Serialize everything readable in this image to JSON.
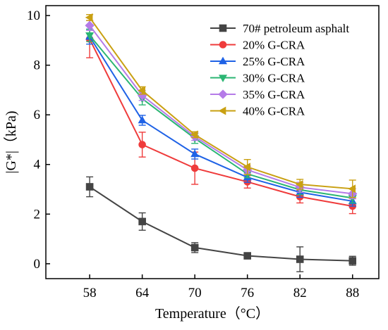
{
  "chart_data": {
    "type": "line",
    "xlabel": "Temperature（°C）",
    "ylabel": "|G*|（kPa)",
    "x": [
      58,
      64,
      70,
      76,
      82,
      88
    ],
    "xlim": [
      53,
      91
    ],
    "ylim": [
      -0.6,
      10.4
    ],
    "yticks": [
      0,
      2,
      4,
      6,
      8,
      10
    ],
    "grid": false,
    "legend_position": "top-right",
    "series": [
      {
        "name": "70# petroleum asphalt",
        "color": "#444444",
        "marker": "square",
        "values": [
          3.1,
          1.7,
          0.65,
          0.32,
          0.18,
          0.12
        ],
        "errors": [
          0.4,
          0.35,
          0.2,
          0.08,
          0.5,
          0.18
        ]
      },
      {
        "name": "20% G-CRA",
        "color": "#ef3b3b",
        "marker": "circle",
        "values": [
          9.05,
          4.8,
          3.85,
          3.3,
          2.7,
          2.32
        ],
        "errors": [
          0.75,
          0.5,
          0.65,
          0.25,
          0.25,
          0.3
        ]
      },
      {
        "name": "25% G-CRA",
        "color": "#1f62e6",
        "marker": "triangle-up",
        "values": [
          9.15,
          5.78,
          4.42,
          3.48,
          2.88,
          2.52
        ],
        "errors": [
          0.3,
          0.2,
          0.2,
          0.2,
          0.2,
          0.2
        ]
      },
      {
        "name": "30% G-CRA",
        "color": "#2bb673",
        "marker": "triangle-down",
        "values": [
          9.2,
          6.65,
          5.05,
          3.62,
          2.98,
          2.65
        ],
        "errors": [
          0.25,
          0.25,
          0.2,
          0.15,
          0.2,
          0.2
        ]
      },
      {
        "name": "35% G-CRA",
        "color": "#b57be8",
        "marker": "diamond",
        "values": [
          9.6,
          6.78,
          5.12,
          3.78,
          3.08,
          2.82
        ],
        "errors": [
          0.2,
          0.2,
          0.15,
          0.15,
          0.2,
          0.2
        ]
      },
      {
        "name": "40% G-CRA",
        "color": "#c9a012",
        "marker": "triangle-left",
        "values": [
          9.92,
          6.98,
          5.2,
          3.9,
          3.2,
          3.02
        ],
        "errors": [
          0.12,
          0.15,
          0.12,
          0.3,
          0.2,
          0.35
        ]
      }
    ]
  }
}
